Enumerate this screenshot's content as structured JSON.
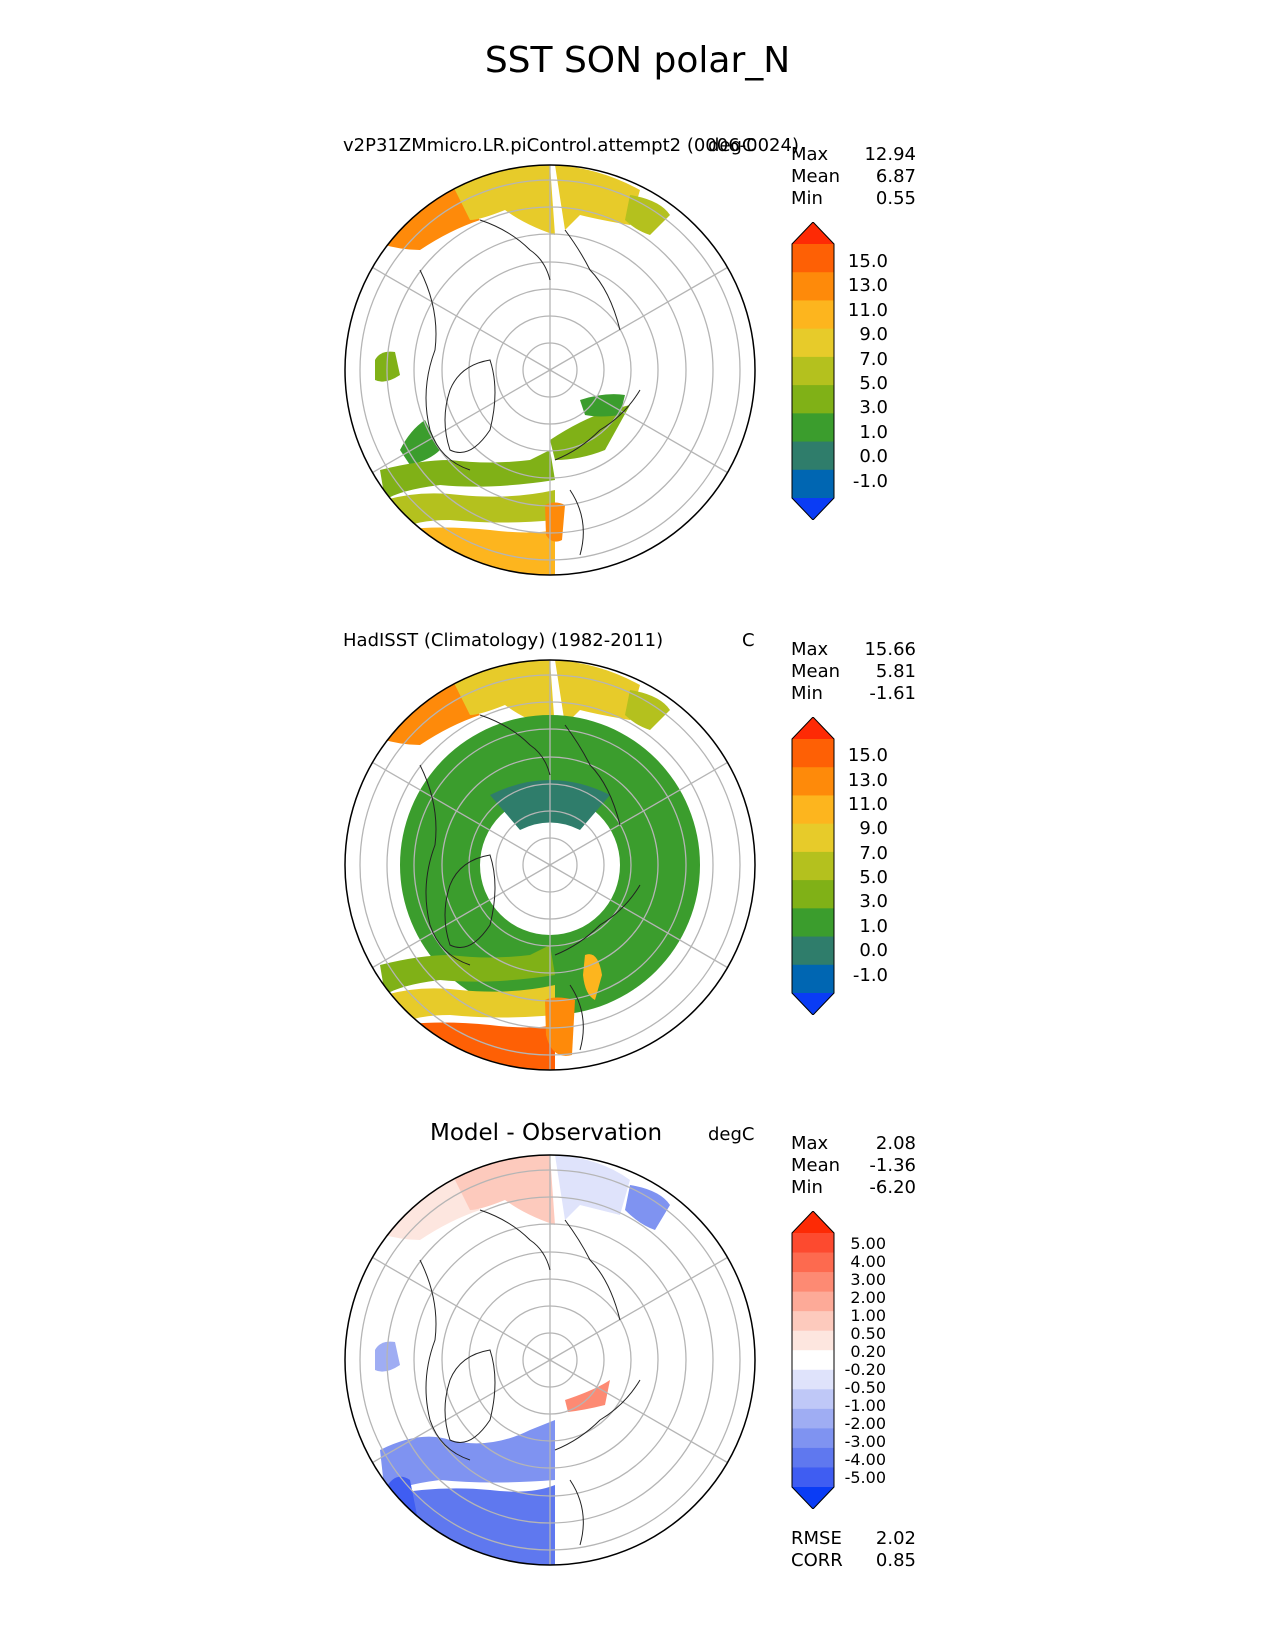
{
  "figure": {
    "title": "SST SON polar_N"
  },
  "chart_data": [
    {
      "type": "heatmap",
      "projection": "north-polar-stereographic",
      "title": "v2P31ZMmicro.LR.piControl.attempt2 (0006-0024)",
      "units": "degC",
      "stats": {
        "max_label": "Max",
        "max": "12.94",
        "mean_label": "Mean",
        "mean": "6.87",
        "min_label": "Min",
        "min": "0.55"
      },
      "colorbar": {
        "ticks": [
          "15.0",
          "13.0",
          "11.0",
          "9.0",
          "7.0",
          "5.0",
          "3.0",
          "1.0",
          "0.0",
          "-1.0"
        ],
        "colors": [
          "#fe2a05",
          "#fe6005",
          "#fe8a0a",
          "#fdb51e",
          "#e7cb2a",
          "#b4c11e",
          "#80b117",
          "#3b9d2d",
          "#2f7d6b",
          "#0066b2",
          "#0a3cf5"
        ]
      }
    },
    {
      "type": "heatmap",
      "projection": "north-polar-stereographic",
      "title": "HadISST (Climatology) (1982-2011)",
      "units": "C",
      "stats": {
        "max_label": "Max",
        "max": "15.66",
        "mean_label": "Mean",
        "mean": "5.81",
        "min_label": "Min",
        "min": "-1.61"
      },
      "colorbar": {
        "ticks": [
          "15.0",
          "13.0",
          "11.0",
          "9.0",
          "7.0",
          "5.0",
          "3.0",
          "1.0",
          "0.0",
          "-1.0"
        ],
        "colors": [
          "#fe2a05",
          "#fe6005",
          "#fe8a0a",
          "#fdb51e",
          "#e7cb2a",
          "#b4c11e",
          "#80b117",
          "#3b9d2d",
          "#2f7d6b",
          "#0066b2",
          "#0a3cf5"
        ]
      }
    },
    {
      "type": "heatmap",
      "projection": "north-polar-stereographic",
      "title": "Model - Observation",
      "units": "degC",
      "stats": {
        "max_label": "Max",
        "max": "2.08",
        "mean_label": "Mean",
        "mean": "-1.36",
        "min_label": "Min",
        "min": "-6.20"
      },
      "metrics": {
        "rmse_label": "RMSE",
        "rmse": "2.02",
        "corr_label": "CORR",
        "corr": "0.85"
      },
      "colorbar": {
        "ticks": [
          "5.00",
          "4.00",
          "3.00",
          "2.00",
          "1.00",
          "0.50",
          "0.20",
          "-0.20",
          "-0.50",
          "-1.00",
          "-2.00",
          "-3.00",
          "-4.00",
          "-5.00"
        ],
        "colors": [
          "#fd2a05",
          "#fd4a2f",
          "#fd6a4f",
          "#fd8a73",
          "#fdaa98",
          "#fdcabd",
          "#fde6df",
          "#ffffff",
          "#dfe3fb",
          "#bfc8f7",
          "#9fadf3",
          "#7f93f1",
          "#5f78ef",
          "#3f5df2",
          "#0a3cf5"
        ]
      }
    }
  ]
}
